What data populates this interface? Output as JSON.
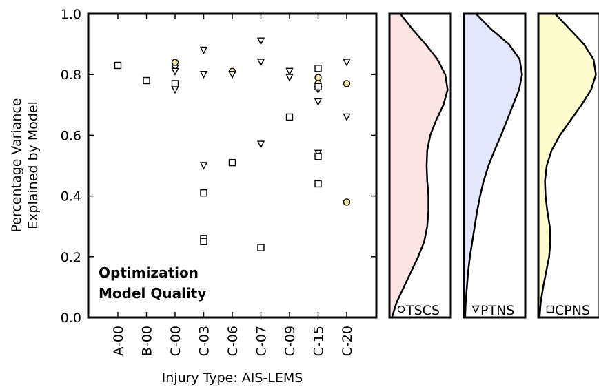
{
  "chart_data": {
    "type": "scatter",
    "annotation": [
      "Optimization",
      "Model Quality"
    ],
    "xlabel": "Injury Type: AIS-LEMS",
    "ylabel": [
      "Percentage Variance",
      "Explained by Model"
    ],
    "categories": [
      "A-00",
      "B-00",
      "C-00",
      "C-03",
      "C-06",
      "C-07",
      "C-09",
      "C-15",
      "C-20"
    ],
    "ylim": [
      0.0,
      1.0
    ],
    "yticks": [
      "0.0",
      "0.2",
      "0.4",
      "0.6",
      "0.8",
      "1.0"
    ],
    "series": [
      {
        "name": "TSCS",
        "marker": "circle",
        "color": "#f4e9a6",
        "points": [
          {
            "x": "C-00",
            "y": 0.84
          },
          {
            "x": "C-06",
            "y": 0.81
          },
          {
            "x": "C-15",
            "y": 0.79
          },
          {
            "x": "C-15",
            "y": 0.77
          },
          {
            "x": "C-20",
            "y": 0.77
          },
          {
            "x": "C-20",
            "y": 0.38
          }
        ]
      },
      {
        "name": "PTNS",
        "marker": "triangle-down",
        "color": "#ffffff",
        "points": [
          {
            "x": "C-00",
            "y": 0.82
          },
          {
            "x": "C-00",
            "y": 0.81
          },
          {
            "x": "C-00",
            "y": 0.75
          },
          {
            "x": "C-03",
            "y": 0.88
          },
          {
            "x": "C-03",
            "y": 0.8
          },
          {
            "x": "C-03",
            "y": 0.5
          },
          {
            "x": "C-06",
            "y": 0.8
          },
          {
            "x": "C-07",
            "y": 0.91
          },
          {
            "x": "C-07",
            "y": 0.84
          },
          {
            "x": "C-07",
            "y": 0.57
          },
          {
            "x": "C-09",
            "y": 0.81
          },
          {
            "x": "C-09",
            "y": 0.79
          },
          {
            "x": "C-15",
            "y": 0.76
          },
          {
            "x": "C-15",
            "y": 0.75
          },
          {
            "x": "C-15",
            "y": 0.71
          },
          {
            "x": "C-15",
            "y": 0.54
          },
          {
            "x": "C-20",
            "y": 0.84
          },
          {
            "x": "C-20",
            "y": 0.66
          }
        ]
      },
      {
        "name": "CPNS",
        "marker": "square",
        "color": "#ffffff",
        "points": [
          {
            "x": "A-00",
            "y": 0.83
          },
          {
            "x": "B-00",
            "y": 0.78
          },
          {
            "x": "C-00",
            "y": 0.77
          },
          {
            "x": "C-03",
            "y": 0.41
          },
          {
            "x": "C-03",
            "y": 0.26
          },
          {
            "x": "C-03",
            "y": 0.25
          },
          {
            "x": "C-06",
            "y": 0.51
          },
          {
            "x": "C-07",
            "y": 0.23
          },
          {
            "x": "C-09",
            "y": 0.66
          },
          {
            "x": "C-15",
            "y": 0.82
          },
          {
            "x": "C-15",
            "y": 0.76
          },
          {
            "x": "C-15",
            "y": 0.53
          },
          {
            "x": "C-15",
            "y": 0.44
          }
        ]
      }
    ],
    "density_panels": [
      {
        "name": "TSCS",
        "marker": "circle",
        "fill": "#fce4e4",
        "curve": [
          [
            0.0,
            0.04
          ],
          [
            0.05,
            0.12
          ],
          [
            0.1,
            0.24
          ],
          [
            0.15,
            0.36
          ],
          [
            0.2,
            0.48
          ],
          [
            0.25,
            0.58
          ],
          [
            0.3,
            0.63
          ],
          [
            0.35,
            0.65
          ],
          [
            0.4,
            0.65
          ],
          [
            0.45,
            0.63
          ],
          [
            0.5,
            0.62
          ],
          [
            0.55,
            0.63
          ],
          [
            0.6,
            0.68
          ],
          [
            0.65,
            0.78
          ],
          [
            0.7,
            0.9
          ],
          [
            0.75,
            0.97
          ],
          [
            0.8,
            0.93
          ],
          [
            0.85,
            0.8
          ],
          [
            0.9,
            0.6
          ],
          [
            0.95,
            0.38
          ],
          [
            1.0,
            0.18
          ]
        ]
      },
      {
        "name": "PTNS",
        "marker": "triangle-down",
        "fill": "#e4e6fc",
        "curve": [
          [
            0.0,
            0.02
          ],
          [
            0.05,
            0.03
          ],
          [
            0.1,
            0.05
          ],
          [
            0.15,
            0.07
          ],
          [
            0.2,
            0.1
          ],
          [
            0.25,
            0.14
          ],
          [
            0.3,
            0.18
          ],
          [
            0.35,
            0.22
          ],
          [
            0.4,
            0.27
          ],
          [
            0.45,
            0.33
          ],
          [
            0.5,
            0.41
          ],
          [
            0.55,
            0.51
          ],
          [
            0.6,
            0.62
          ],
          [
            0.65,
            0.72
          ],
          [
            0.7,
            0.82
          ],
          [
            0.75,
            0.92
          ],
          [
            0.8,
            0.97
          ],
          [
            0.85,
            0.93
          ],
          [
            0.9,
            0.75
          ],
          [
            0.95,
            0.45
          ],
          [
            1.0,
            0.2
          ]
        ]
      },
      {
        "name": "CPNS",
        "marker": "square",
        "fill": "#fdfccc",
        "curve": [
          [
            0.0,
            0.02
          ],
          [
            0.05,
            0.04
          ],
          [
            0.1,
            0.08
          ],
          [
            0.15,
            0.13
          ],
          [
            0.2,
            0.18
          ],
          [
            0.25,
            0.2
          ],
          [
            0.3,
            0.19
          ],
          [
            0.35,
            0.15
          ],
          [
            0.4,
            0.12
          ],
          [
            0.45,
            0.11
          ],
          [
            0.5,
            0.14
          ],
          [
            0.55,
            0.22
          ],
          [
            0.6,
            0.36
          ],
          [
            0.65,
            0.54
          ],
          [
            0.7,
            0.72
          ],
          [
            0.75,
            0.88
          ],
          [
            0.8,
            0.96
          ],
          [
            0.85,
            0.92
          ],
          [
            0.9,
            0.76
          ],
          [
            0.95,
            0.52
          ],
          [
            1.0,
            0.28
          ]
        ]
      }
    ]
  }
}
